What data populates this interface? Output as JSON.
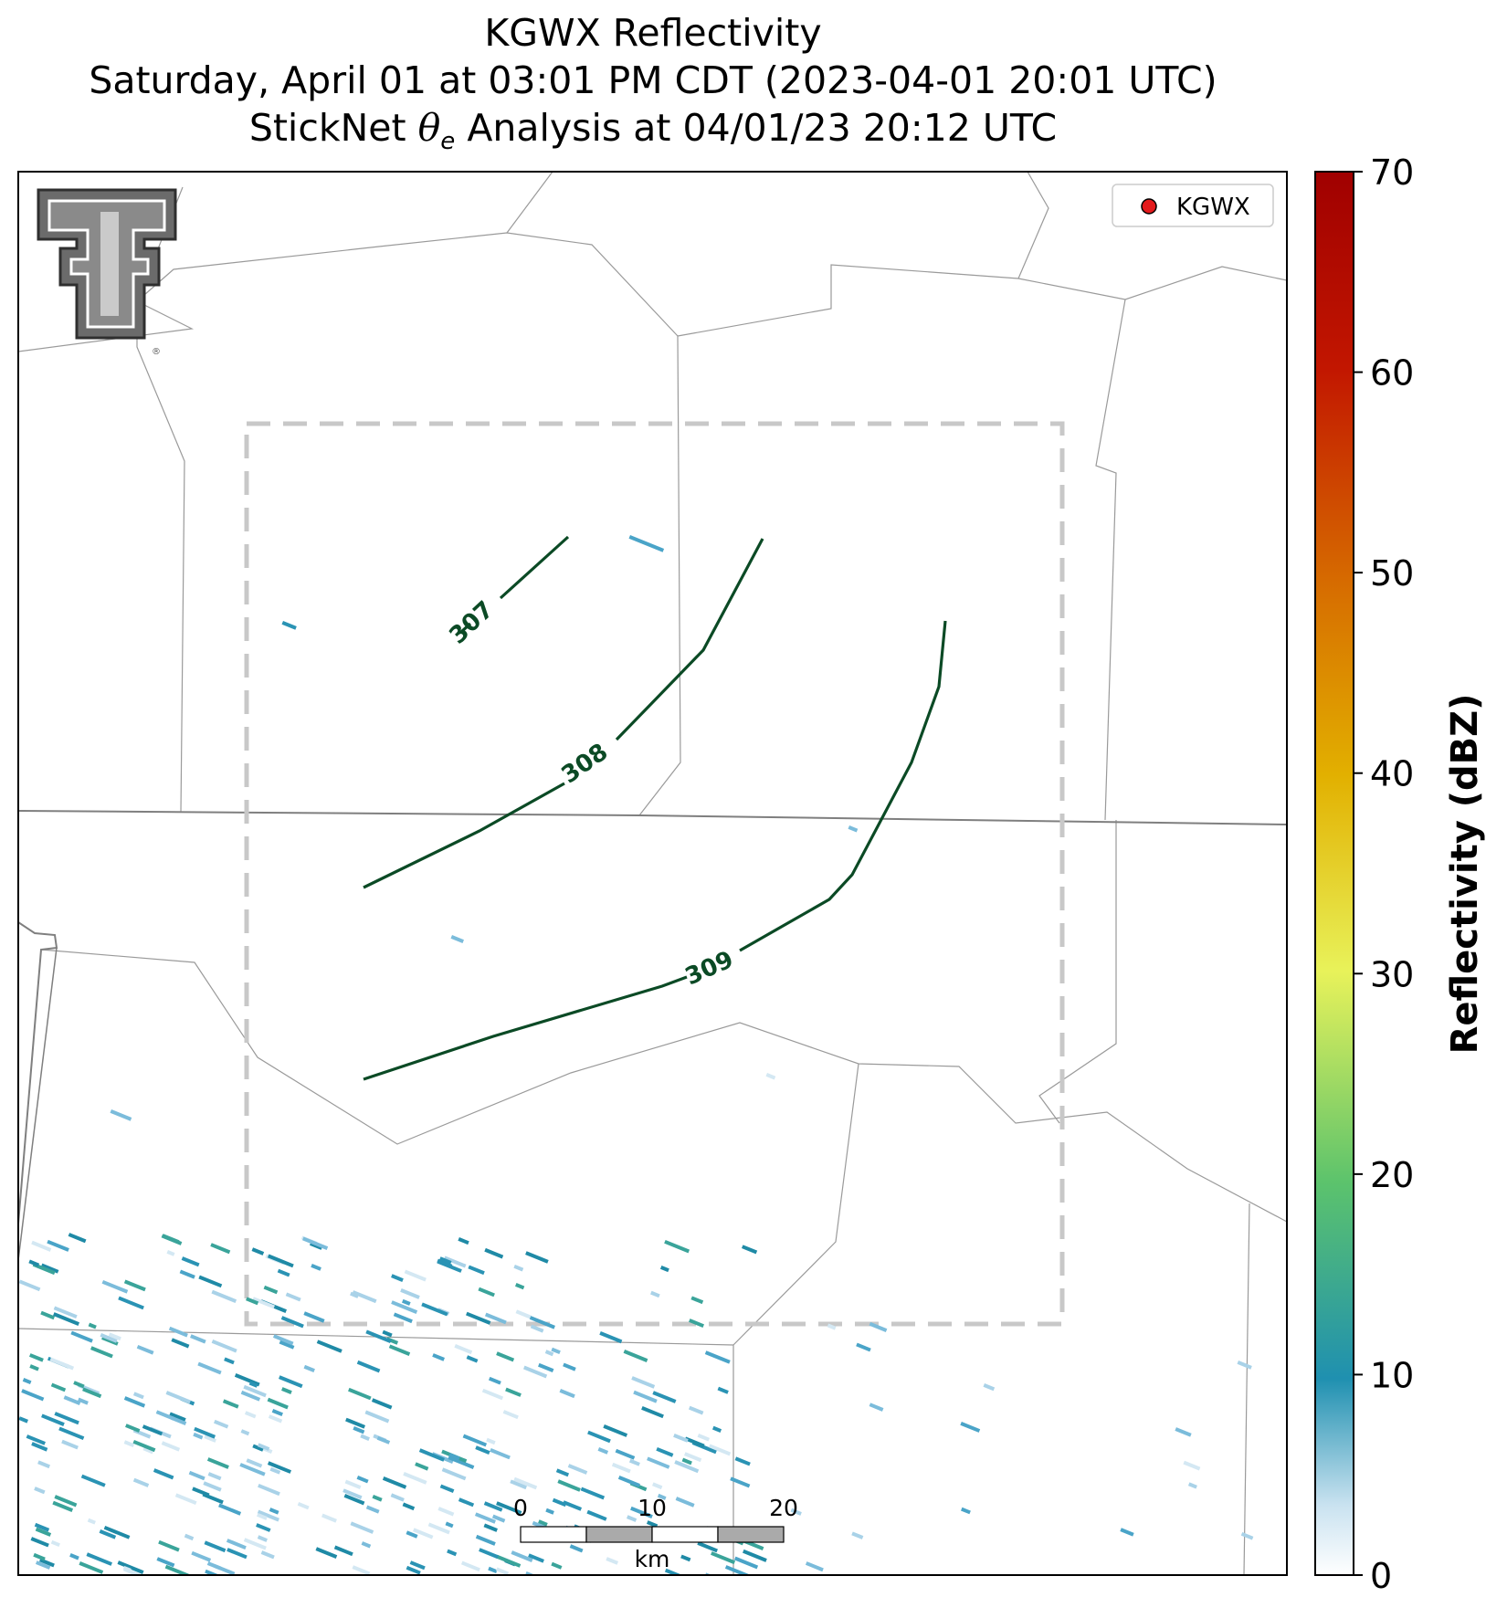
{
  "title": {
    "line1": "KGWX Reflectivity",
    "line2": "Saturday, April 01 at 03:01 PM CDT (2023-04-01 20:01 UTC)",
    "line3_prefix": "StickNet ",
    "line3_symbol": "θ",
    "line3_subscript": "e",
    "line3_suffix": " Analysis at 04/01/23 20:12 UTC"
  },
  "legend": {
    "label": "KGWX",
    "marker_color": "#e31a1c"
  },
  "contours": [
    {
      "label": "307",
      "color": "#0b4a25"
    },
    {
      "label": "308",
      "color": "#0b4a25"
    },
    {
      "label": "309",
      "color": "#0b4a25"
    }
  ],
  "scale_bar": {
    "labels": [
      "0",
      "10",
      "20"
    ],
    "unit": "km"
  },
  "colorbar": {
    "label": "Reflectivity (dBZ)",
    "range": [
      0,
      70
    ],
    "ticks": [
      "0",
      "10",
      "20",
      "30",
      "40",
      "50",
      "60",
      "70"
    ],
    "colors": [
      "#ffffff",
      "#1f90b0",
      "#5cc36c",
      "#e8f25a",
      "#e2b000",
      "#d66a00",
      "#c21600",
      "#a00000"
    ]
  },
  "logo": {
    "name": "Texas Tech double-T logo",
    "registered_mark": "®"
  }
}
